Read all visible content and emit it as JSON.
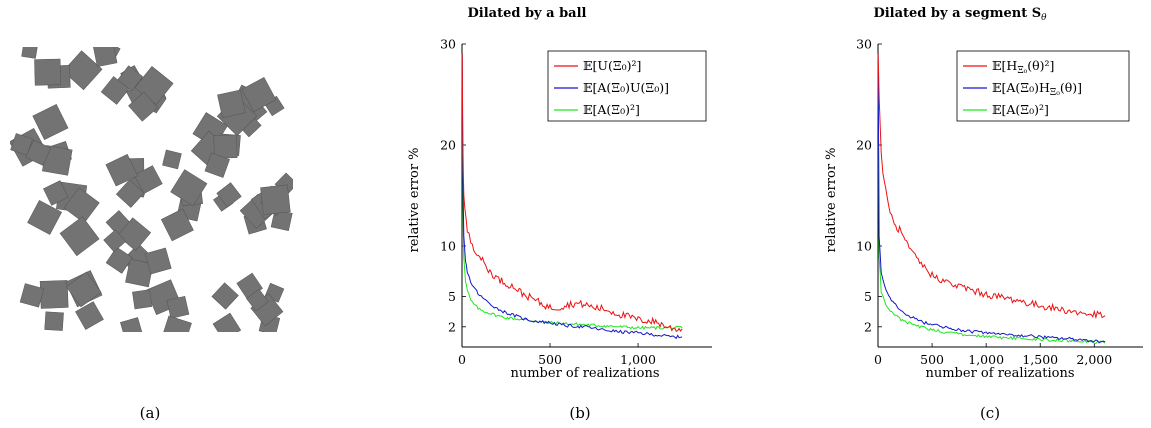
{
  "captions": [
    "(a)",
    "(b)",
    "(c)"
  ],
  "colors": {
    "red": "#ee1111",
    "blue": "#1616cc",
    "green": "#22e622",
    "gray": "#737373"
  },
  "image_a": {
    "description_icon": "random-squares-texture"
  },
  "chart_data": [
    {
      "type": "line",
      "title": "Dilated by a ball",
      "xlabel": "number of realizations",
      "ylabel": "relative error %",
      "xlim": [
        0,
        1420
      ],
      "ylim": [
        0,
        30
      ],
      "x_ticks": [
        0,
        500,
        1000
      ],
      "x_tick_labels": [
        "0",
        "500",
        "1,000"
      ],
      "y_ticks": [
        2,
        5,
        10,
        20,
        30
      ],
      "y_tick_labels": [
        "2",
        "5",
        "10",
        "20",
        "30"
      ],
      "grid": false,
      "legend_position": "top-right",
      "series": [
        {
          "name": "E[U(Ξ0)²]",
          "color": "red",
          "x": [
            1,
            5,
            10,
            20,
            30,
            50,
            75,
            100,
            150,
            200,
            250,
            300,
            350,
            400,
            450,
            500,
            550,
            600,
            650,
            700,
            750,
            800,
            850,
            900,
            950,
            1000,
            1050,
            1100,
            1150,
            1200,
            1250
          ],
          "y": [
            29,
            20,
            15,
            13,
            11.5,
            10.5,
            9.6,
            9,
            7.6,
            6.8,
            6.3,
            5.9,
            5.2,
            4.8,
            4.3,
            3.9,
            3.9,
            4.2,
            4.3,
            4.2,
            3.9,
            3.8,
            3.5,
            3.2,
            3.0,
            2.7,
            2.6,
            2.5,
            2.1,
            1.8,
            1.8
          ]
        },
        {
          "name": "E[A(Ξ0)U(Ξ0)]",
          "color": "blue",
          "x": [
            1,
            5,
            10,
            20,
            30,
            50,
            75,
            100,
            150,
            200,
            250,
            300,
            350,
            400,
            450,
            500,
            600,
            700,
            800,
            900,
            1000,
            1100,
            1200,
            1250
          ],
          "y": [
            29,
            17,
            11,
            8.5,
            7.5,
            6.4,
            5.7,
            5.1,
            4.4,
            3.8,
            3.4,
            3.1,
            2.8,
            2.6,
            2.5,
            2.4,
            2.1,
            2.0,
            1.7,
            1.5,
            1.4,
            1.2,
            1.0,
            1.0
          ]
        },
        {
          "name": "E[A(Ξ0)²]",
          "color": "green",
          "x": [
            1,
            5,
            10,
            20,
            30,
            50,
            75,
            100,
            150,
            200,
            250,
            300,
            350,
            400,
            450,
            500,
            600,
            700,
            800,
            900,
            1000,
            1100,
            1200,
            1250
          ],
          "y": [
            29,
            15,
            9,
            6.5,
            5.6,
            4.6,
            4.1,
            3.7,
            3.4,
            3.1,
            2.9,
            2.8,
            2.7,
            2.6,
            2.5,
            2.4,
            2.3,
            2.2,
            2.1,
            2.0,
            1.9,
            1.9,
            1.9,
            1.9
          ]
        }
      ],
      "legend": [
        {
          "text": "𝔼[U(Ξ₀)²]",
          "color": "red"
        },
        {
          "text": "𝔼[A(Ξ₀)U(Ξ₀)]",
          "color": "blue"
        },
        {
          "text": "𝔼[A(Ξ₀)²]",
          "color": "green"
        }
      ]
    },
    {
      "type": "line",
      "title": "Dilated by a segment S",
      "title_sub": "θ",
      "xlabel": "number of realizations",
      "ylabel": "relative error %",
      "xlim": [
        0,
        2450
      ],
      "ylim": [
        0,
        30
      ],
      "x_ticks": [
        0,
        500,
        1000,
        1500,
        2000
      ],
      "x_tick_labels": [
        "0",
        "500",
        "1,000",
        "1,500",
        "2,000"
      ],
      "y_ticks": [
        2,
        5,
        10,
        20,
        30
      ],
      "y_tick_labels": [
        "2",
        "5",
        "10",
        "20",
        "30"
      ],
      "grid": false,
      "legend_position": "top-right",
      "series": [
        {
          "name": "E[H(θ)²]",
          "color": "red",
          "x": [
            1,
            10,
            30,
            60,
            100,
            150,
            200,
            250,
            300,
            400,
            500,
            600,
            700,
            800,
            900,
            1000,
            1100,
            1200,
            1300,
            1400,
            1500,
            1600,
            1700,
            1800,
            1900,
            2000,
            2100
          ],
          "y": [
            29,
            25,
            19,
            16,
            14,
            12,
            11.6,
            10.5,
            9.5,
            8.2,
            7.1,
            6.6,
            6.1,
            5.9,
            5.5,
            5.2,
            5.0,
            4.8,
            4.6,
            4.3,
            4.1,
            3.9,
            3.7,
            3.5,
            3.3,
            3.2,
            3.1
          ]
        },
        {
          "name": "E[A(Ξ0)H(θ)]",
          "color": "blue",
          "x": [
            1,
            10,
            30,
            60,
            100,
            150,
            200,
            250,
            300,
            400,
            500,
            600,
            700,
            800,
            900,
            1000,
            1200,
            1400,
            1600,
            1800,
            2000,
            2100
          ],
          "y": [
            29,
            11,
            7.5,
            6,
            5,
            4.3,
            3.7,
            3.3,
            3.0,
            2.5,
            2.2,
            2.0,
            1.8,
            1.6,
            1.5,
            1.4,
            1.2,
            1.1,
            0.9,
            0.8,
            0.6,
            0.5
          ]
        },
        {
          "name": "E[A(Ξ0)²]",
          "color": "green",
          "x": [
            1,
            10,
            30,
            60,
            100,
            150,
            200,
            250,
            300,
            400,
            500,
            600,
            700,
            800,
            900,
            1000,
            1200,
            1400,
            1600,
            1800,
            2000,
            2100
          ],
          "y": [
            29,
            9,
            5.5,
            4.5,
            3.8,
            3.2,
            2.8,
            2.5,
            2.3,
            2.0,
            1.7,
            1.5,
            1.4,
            1.2,
            1.1,
            1.0,
            0.9,
            0.8,
            0.7,
            0.6,
            0.5,
            0.4
          ]
        }
      ],
      "legend": [
        {
          "text": "𝔼[H",
          "sub": "Ξ₀",
          "text2": "(θ)²]",
          "color": "red"
        },
        {
          "text": "𝔼[A(Ξ₀)H",
          "sub": "Ξ₀",
          "text2": "(θ)]",
          "color": "blue"
        },
        {
          "text": "𝔼[A(Ξ₀)²]",
          "color": "green"
        }
      ]
    }
  ]
}
